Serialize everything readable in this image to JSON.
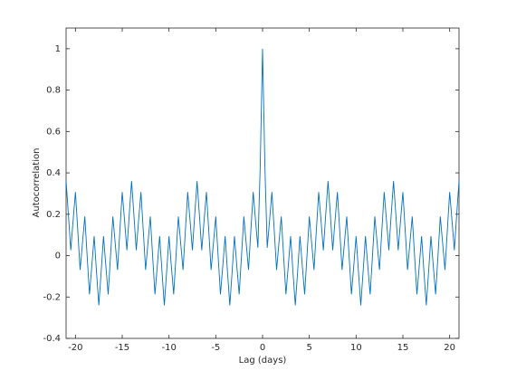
{
  "chart_data": {
    "type": "line",
    "xlabel": "Lag (days)",
    "ylabel": "Autocorrelation",
    "color": "#0072bd",
    "xlim": [
      -21,
      21
    ],
    "xticks": [
      -20,
      -15,
      -10,
      -5,
      0,
      5,
      10,
      15,
      20
    ],
    "ylim": [
      -0.4,
      1.1
    ],
    "yticks": [
      -0.4,
      -0.2,
      0,
      0.2,
      0.4,
      0.6,
      0.8,
      1
    ],
    "grid": false,
    "x": [
      -21,
      -20.75,
      -20.5,
      -20.25,
      -20,
      -19.75,
      -19.5,
      -19.25,
      -19,
      -18.75,
      -18.5,
      -18.25,
      -18,
      -17.75,
      -17.5,
      -17.25,
      -17,
      -16.75,
      -16.5,
      -16.25,
      -16,
      -15.75,
      -15.5,
      -15.25,
      -15,
      -14.75,
      -14.5,
      -14.25,
      -14,
      -13.75,
      -13.5,
      -13.25,
      -13,
      -12.75,
      -12.5,
      -12.25,
      -12,
      -11.75,
      -11.5,
      -11.25,
      -11,
      -10.75,
      -10.5,
      -10.25,
      -10,
      -9.75,
      -9.5,
      -9.25,
      -9,
      -8.75,
      -8.5,
      -8.25,
      -8,
      -7.75,
      -7.5,
      -7.25,
      -7,
      -6.75,
      -6.5,
      -6.25,
      -6,
      -5.75,
      -5.5,
      -5.25,
      -5,
      -4.75,
      -4.5,
      -4.25,
      -4,
      -3.75,
      -3.5,
      -3.25,
      -3,
      -2.75,
      -2.5,
      -2.25,
      -2,
      -1.75,
      -1.5,
      -1.25,
      -1,
      -0.75,
      -0.5,
      -0.25,
      0,
      0.25,
      0.5,
      0.75,
      1,
      1.25,
      1.5,
      1.75,
      2,
      2.25,
      2.5,
      2.75,
      3,
      3.25,
      3.5,
      3.75,
      4,
      4.25,
      4.5,
      4.75,
      5,
      5.25,
      5.5,
      5.75,
      6,
      6.25,
      6.5,
      6.75,
      7,
      7.25,
      7.5,
      7.75,
      8,
      8.25,
      8.5,
      8.75,
      9,
      9.25,
      9.5,
      9.75,
      10,
      10.25,
      10.5,
      10.75,
      11,
      11.25,
      11.5,
      11.75,
      12,
      12.25,
      12.5,
      12.75,
      13,
      13.25,
      13.5,
      13.75,
      14,
      14.25,
      14.5,
      14.75,
      15,
      15.25,
      15.5,
      15.75,
      16,
      16.25,
      16.5,
      16.75,
      17,
      17.25,
      17.5,
      17.75,
      18,
      18.25,
      18.5,
      18.75,
      19,
      19.25,
      19.5,
      19.75,
      20,
      20.25,
      20.5,
      20.75,
      21
    ],
    "values": [
      0.36,
      0.197,
      0.026,
      0.17,
      0.307,
      0.121,
      -0.069,
      0.06,
      0.189,
      -0.001,
      -0.187,
      -0.05,
      0.094,
      -0.077,
      -0.24,
      -0.077,
      0.094,
      -0.05,
      -0.187,
      -0.001,
      0.189,
      0.06,
      -0.069,
      0.121,
      0.307,
      0.17,
      0.026,
      0.197,
      0.36,
      0.197,
      0.026,
      0.17,
      0.307,
      0.121,
      -0.069,
      0.06,
      0.189,
      -0.001,
      -0.187,
      -0.05,
      0.094,
      -0.077,
      -0.24,
      -0.077,
      0.094,
      -0.05,
      -0.187,
      -0.001,
      0.189,
      0.06,
      -0.069,
      0.121,
      0.307,
      0.17,
      0.026,
      0.197,
      0.36,
      0.197,
      0.026,
      0.17,
      0.307,
      0.121,
      -0.069,
      0.06,
      0.189,
      -0.001,
      -0.187,
      -0.05,
      0.094,
      -0.077,
      -0.24,
      -0.077,
      0.094,
      -0.05,
      -0.187,
      -0.001,
      0.189,
      0.06,
      -0.069,
      0.121,
      0.307,
      0.17,
      0.038,
      0.432,
      1.0,
      0.432,
      0.038,
      0.17,
      0.307,
      0.121,
      -0.069,
      0.06,
      0.189,
      -0.001,
      -0.187,
      -0.05,
      0.094,
      -0.077,
      -0.24,
      -0.077,
      0.094,
      -0.05,
      -0.187,
      -0.001,
      0.189,
      0.06,
      -0.069,
      0.121,
      0.307,
      0.17,
      0.026,
      0.197,
      0.36,
      0.197,
      0.026,
      0.17,
      0.307,
      0.121,
      -0.069,
      0.06,
      0.189,
      -0.001,
      -0.187,
      -0.05,
      0.094,
      -0.077,
      -0.24,
      -0.077,
      0.094,
      -0.05,
      -0.187,
      -0.001,
      0.189,
      0.06,
      -0.069,
      0.121,
      0.307,
      0.17,
      0.026,
      0.197,
      0.36,
      0.197,
      0.026,
      0.17,
      0.307,
      0.121,
      -0.069,
      0.06,
      0.189,
      -0.001,
      -0.187,
      -0.05,
      0.094,
      -0.077,
      -0.24,
      -0.077,
      0.094,
      -0.05,
      -0.187,
      -0.001,
      0.189,
      0.06,
      -0.069,
      0.121,
      0.307,
      0.17,
      0.026,
      0.197,
      0.36
    ]
  }
}
